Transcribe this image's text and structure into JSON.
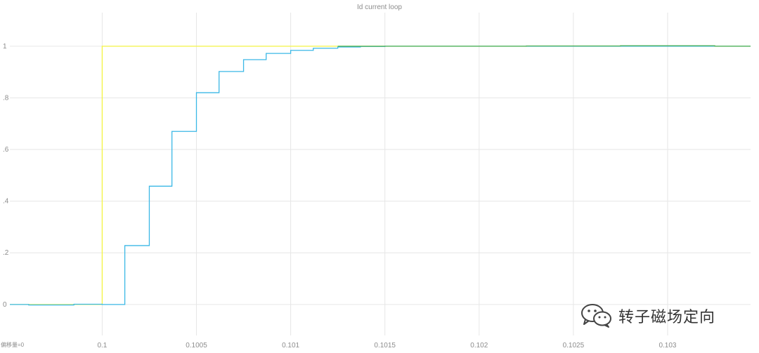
{
  "chart_data": {
    "type": "line",
    "title": "Id current loop",
    "xlabel": "",
    "ylabel": "",
    "xlim": [
      0.09951,
      0.10344
    ],
    "ylim": [
      -0.12,
      1.13
    ],
    "grid": true,
    "x_ticks": [
      0.1,
      0.1005,
      0.101,
      0.1015,
      0.102,
      0.1025,
      0.103
    ],
    "x_tick_labels": [
      "0.1",
      "0.1005",
      "0.101",
      "0.1015",
      "0.102",
      "0.1025",
      "0.103"
    ],
    "y_ticks": [
      0,
      0.2,
      0.4,
      0.6,
      0.8,
      1.0
    ],
    "y_tick_labels": [
      "0",
      ".2",
      ".4",
      ".6",
      ".8",
      "1"
    ],
    "offset_label": "偏移量=0",
    "series": [
      {
        "color": "#f5f542",
        "step": true,
        "x": [
          0.09951,
          0.1,
          0.10344
        ],
        "y": [
          0,
          1,
          1
        ]
      },
      {
        "color": "#3bb8e6",
        "step": true,
        "x": [
          0.09951,
          0.09961,
          0.09985,
          0.1,
          0.10012,
          0.10025,
          0.10037,
          0.1005,
          0.10062,
          0.10075,
          0.10087,
          0.101,
          0.10112,
          0.10125,
          0.10137,
          0.1015,
          0.10344
        ],
        "y": [
          0,
          -0.002,
          0.001,
          0,
          0.228,
          0.458,
          0.67,
          0.82,
          0.902,
          0.948,
          0.972,
          0.984,
          0.992,
          0.997,
          0.999,
          1.0,
          1.0
        ]
      },
      {
        "color": "#4caf50",
        "step": true,
        "x": [
          0.10125,
          0.10175,
          0.10225,
          0.10275,
          0.10325,
          0.10344
        ],
        "y": [
          1.0,
          1.0,
          1.001,
          1.002,
          1.0,
          1.0
        ]
      }
    ]
  },
  "watermark": {
    "icon": "wechat-icon",
    "text": "转子磁场定向"
  }
}
